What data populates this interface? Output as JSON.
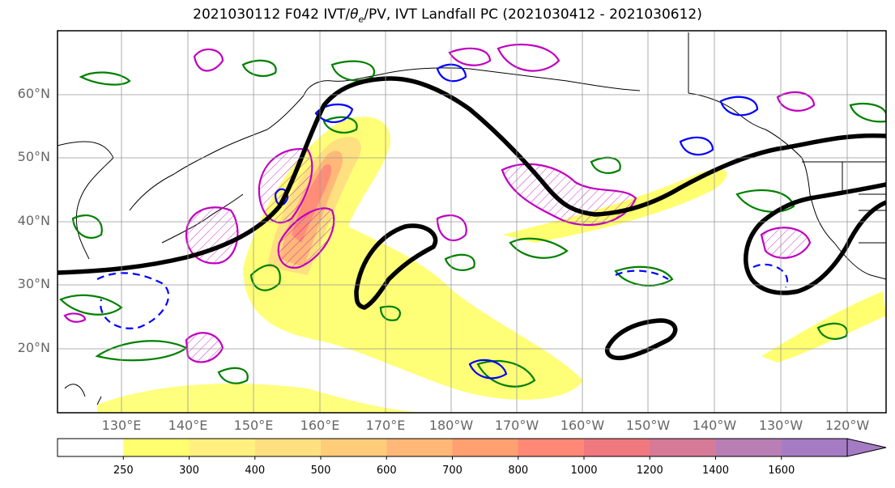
{
  "title_prefix": "2021030112 F042 IVT/",
  "title_theta": "θ",
  "title_sub": "e",
  "title_suffix": "/PV, IVT Landfall PC (2021030412 - 2021030612)",
  "lat_labels": [
    "60°N",
    "50°N",
    "40°N",
    "30°N",
    "20°N"
  ],
  "lon_labels": [
    "130°E",
    "140°E",
    "150°E",
    "160°E",
    "170°E",
    "180°W",
    "170°W",
    "160°W",
    "150°W",
    "140°W",
    "130°W",
    "120°W"
  ],
  "colorbar": {
    "ticks": [
      "250",
      "300",
      "400",
      "500",
      "600",
      "700",
      "800",
      "1000",
      "1200",
      "1400",
      "1600"
    ],
    "colors": [
      "#ffffff",
      "#ffff70",
      "#fff080",
      "#ffe080",
      "#ffcc7a",
      "#ffb877",
      "#ffa070",
      "#ff8877",
      "#f0787f",
      "#d67a98",
      "#b97fb5",
      "#a57cc4"
    ]
  },
  "legend_colors": {
    "ivt_pc_contour": "#000000",
    "theta_e": "#008000",
    "pv_positive": "#c000c0",
    "pv_negative": "#0000ff"
  }
}
